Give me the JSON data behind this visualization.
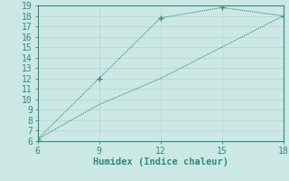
{
  "line1_x": [
    6,
    9,
    12,
    15,
    18
  ],
  "line1_y": [
    6.2,
    12.0,
    17.8,
    18.8,
    18.0
  ],
  "line2_x": [
    6,
    9,
    12,
    15,
    18
  ],
  "line2_y": [
    6.2,
    9.5,
    12.0,
    15.0,
    18.0
  ],
  "line_color": "#2e8b7a",
  "bg_color": "#cce8e5",
  "grid_color": "#b0d4d0",
  "xlabel": "Humidex (Indice chaleur)",
  "xlim": [
    6,
    18
  ],
  "ylim": [
    6,
    19
  ],
  "xticks": [
    6,
    9,
    12,
    15,
    18
  ],
  "yticks": [
    6,
    7,
    8,
    9,
    10,
    11,
    12,
    13,
    14,
    15,
    16,
    17,
    18,
    19
  ],
  "marker": "+",
  "marker_size": 4,
  "line_width": 0.8,
  "xlabel_fontsize": 7.5,
  "tick_fontsize": 7
}
